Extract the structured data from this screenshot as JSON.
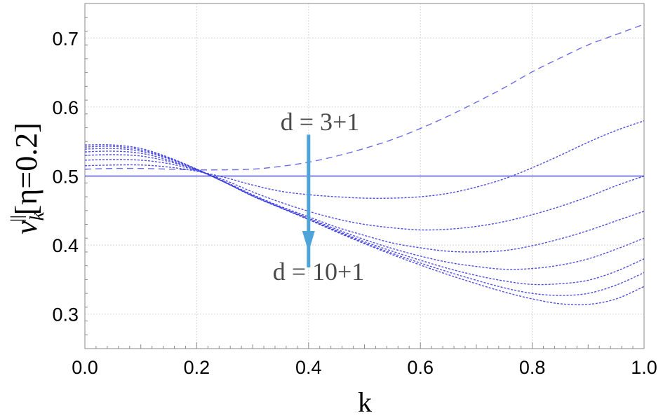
{
  "chart_data": {
    "type": "line",
    "title": "",
    "xlabel": "k",
    "ylabel_main": "ν",
    "ylabel_sub": "k",
    "ylabel_sup": "||",
    "ylabel_rest": "[η=0.2]",
    "xlim": [
      0,
      1
    ],
    "ylim": [
      0.25,
      0.75
    ],
    "grid": true,
    "x_ticks": [
      "0.0",
      "0.2",
      "0.4",
      "0.6",
      "0.8",
      "1.0"
    ],
    "y_ticks": [
      "0.3",
      "0.4",
      "0.5",
      "0.6",
      "0.7"
    ],
    "x_tick_values": [
      0,
      0.2,
      0.4,
      0.6,
      0.8,
      1.0
    ],
    "y_tick_values": [
      0.3,
      0.4,
      0.5,
      0.6,
      0.7
    ],
    "annotations": {
      "top": "d = 3+1",
      "bottom": "d = 10+1",
      "arrow": {
        "x": 0.4,
        "y_from": 0.56,
        "y_to": 0.39,
        "color": "#4ea4d8"
      }
    },
    "series_color": "#3b3bdf",
    "x": [
      0,
      0.05,
      0.1,
      0.15,
      0.2,
      0.25,
      0.3,
      0.35,
      0.4,
      0.45,
      0.5,
      0.55,
      0.6,
      0.65,
      0.7,
      0.75,
      0.8,
      0.85,
      0.9,
      0.95,
      1.0
    ],
    "series": [
      {
        "style": "solid",
        "values": [
          0.5,
          0.5,
          0.5,
          0.5,
          0.5,
          0.5,
          0.5,
          0.5,
          0.5,
          0.5,
          0.5,
          0.5,
          0.5,
          0.5,
          0.5,
          0.5,
          0.5,
          0.5,
          0.5,
          0.5,
          0.5
        ]
      },
      {
        "style": "dashed",
        "values": [
          0.51,
          0.511,
          0.511,
          0.51,
          0.509,
          0.509,
          0.51,
          0.514,
          0.52,
          0.529,
          0.54,
          0.553,
          0.569,
          0.587,
          0.607,
          0.628,
          0.651,
          0.671,
          0.69,
          0.705,
          0.72
        ]
      },
      {
        "style": "dotted",
        "values": [
          0.515,
          0.516,
          0.516,
          0.513,
          0.507,
          0.498,
          0.487,
          0.478,
          0.473,
          0.47,
          0.468,
          0.468,
          0.47,
          0.475,
          0.484,
          0.496,
          0.512,
          0.53,
          0.549,
          0.566,
          0.58
        ]
      },
      {
        "style": "dotted",
        "values": [
          0.523,
          0.524,
          0.523,
          0.518,
          0.508,
          0.494,
          0.477,
          0.462,
          0.449,
          0.438,
          0.43,
          0.425,
          0.422,
          0.423,
          0.427,
          0.434,
          0.444,
          0.456,
          0.47,
          0.486,
          0.5
        ]
      },
      {
        "style": "dotted",
        "values": [
          0.53,
          0.531,
          0.529,
          0.521,
          0.509,
          0.492,
          0.473,
          0.456,
          0.441,
          0.426,
          0.414,
          0.403,
          0.396,
          0.391,
          0.39,
          0.392,
          0.399,
          0.409,
          0.421,
          0.435,
          0.449
        ]
      },
      {
        "style": "dotted",
        "values": [
          0.535,
          0.536,
          0.533,
          0.523,
          0.509,
          0.491,
          0.472,
          0.455,
          0.439,
          0.423,
          0.408,
          0.395,
          0.384,
          0.375,
          0.369,
          0.365,
          0.366,
          0.371,
          0.38,
          0.394,
          0.41
        ]
      },
      {
        "style": "dotted",
        "values": [
          0.539,
          0.54,
          0.536,
          0.525,
          0.51,
          0.491,
          0.471,
          0.454,
          0.438,
          0.421,
          0.405,
          0.391,
          0.378,
          0.366,
          0.356,
          0.348,
          0.343,
          0.344,
          0.349,
          0.362,
          0.38
        ]
      },
      {
        "style": "dotted",
        "values": [
          0.542,
          0.543,
          0.538,
          0.526,
          0.51,
          0.491,
          0.471,
          0.454,
          0.437,
          0.42,
          0.403,
          0.388,
          0.374,
          0.361,
          0.349,
          0.338,
          0.33,
          0.327,
          0.33,
          0.342,
          0.36
        ]
      },
      {
        "style": "dotted",
        "values": [
          0.545,
          0.545,
          0.54,
          0.527,
          0.51,
          0.491,
          0.471,
          0.454,
          0.437,
          0.419,
          0.402,
          0.386,
          0.371,
          0.357,
          0.344,
          0.332,
          0.322,
          0.315,
          0.314,
          0.322,
          0.34
        ]
      }
    ]
  }
}
